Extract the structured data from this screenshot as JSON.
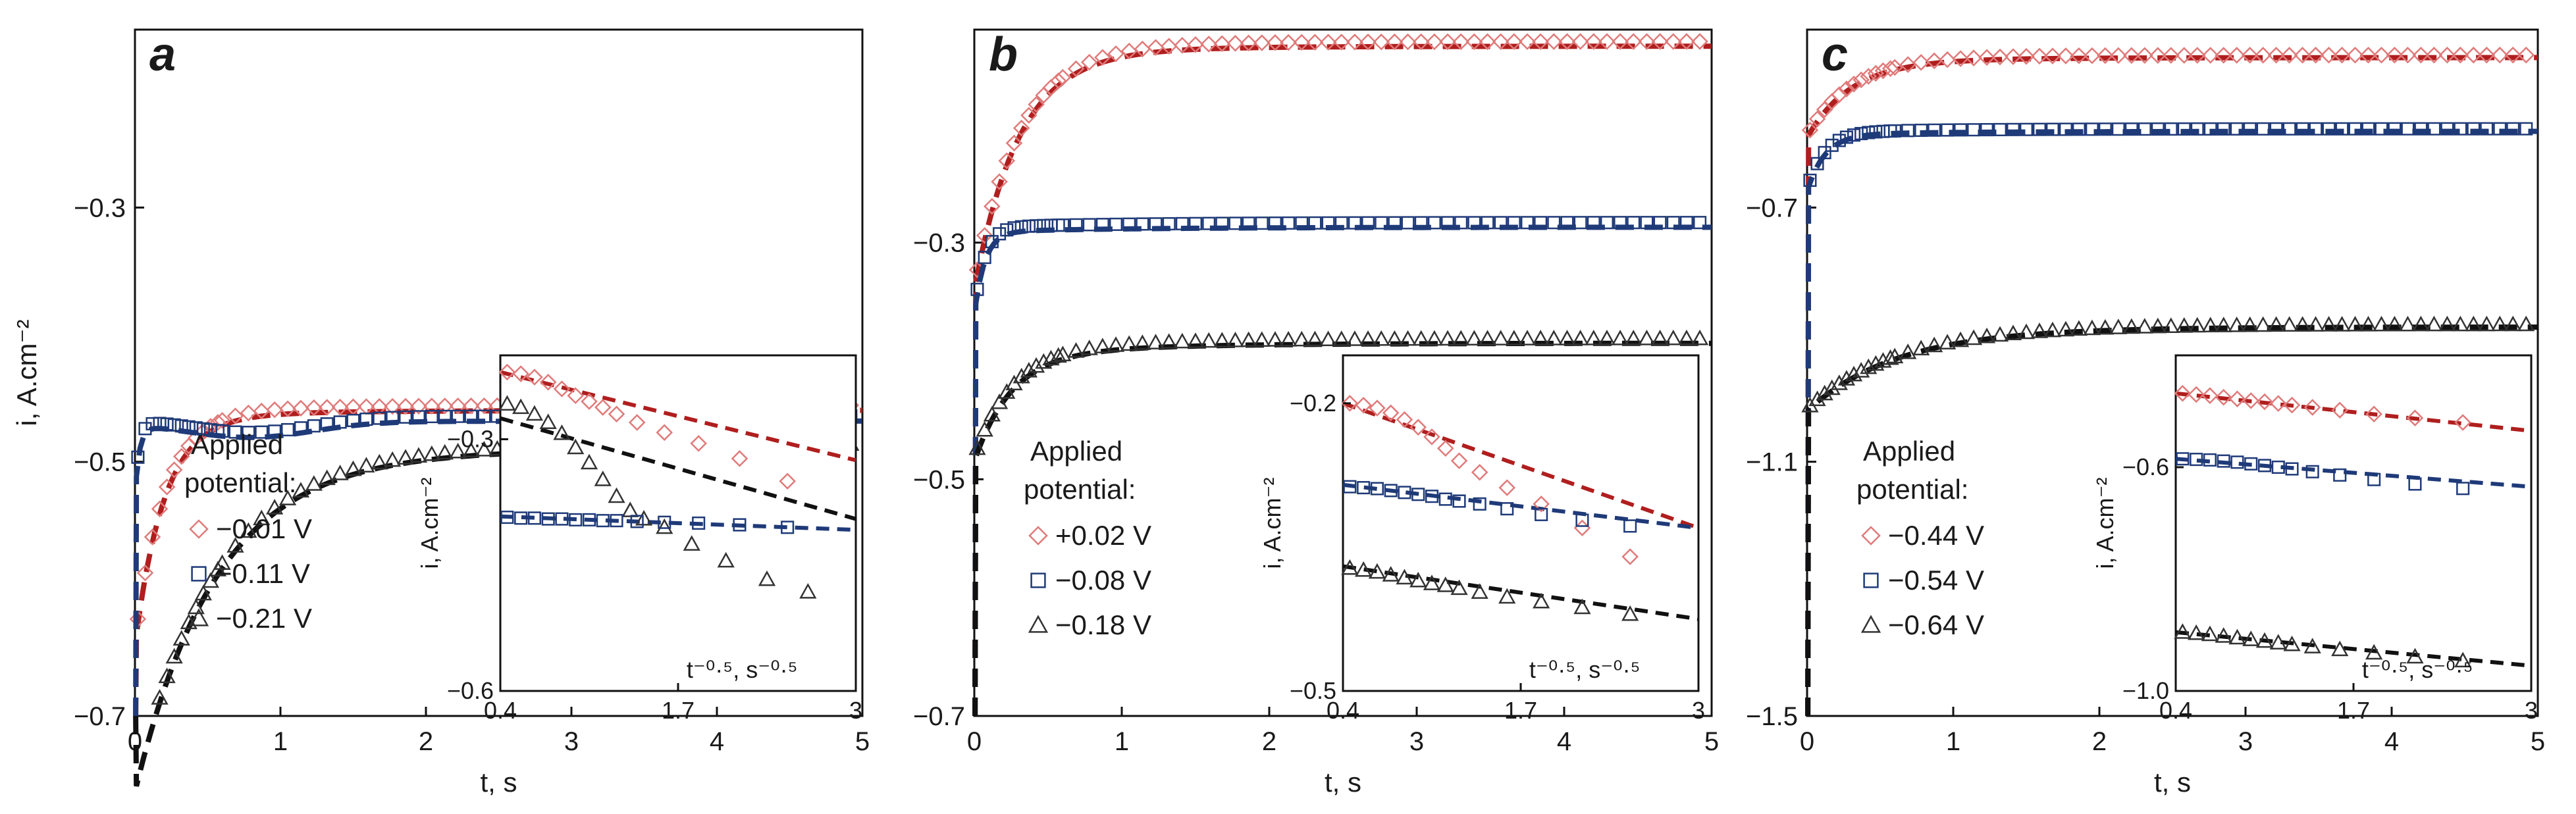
{
  "colors": {
    "red": "#b01e1e",
    "blue": "#1f3a78",
    "black": "#111111",
    "red_marker": "#e07a7a",
    "blue_marker": "#1f3a78",
    "black_marker": "#333333"
  },
  "chart_data": [
    {
      "type": "scatter",
      "panel": "a",
      "xlabel": "t, s",
      "ylabel": "i, A.cm⁻²",
      "xlim": [
        0,
        5
      ],
      "ylim": [
        -0.7,
        -0.16
      ],
      "xticks": [
        0,
        1,
        2,
        3,
        4,
        5
      ],
      "xtick_labels": [
        "0",
        "1",
        "2",
        "3",
        "4",
        "5"
      ],
      "yticks": [
        -0.7,
        -0.5,
        -0.3
      ],
      "ytick_labels": [
        "-0.7",
        "-0.5",
        "-0.3"
      ],
      "legend_title": [
        "Applied",
        "potential:"
      ],
      "series": [
        {
          "name": "-0.01 V",
          "label": "◇ −0.01 V",
          "marker": "diamond",
          "color": "red",
          "model": {
            "base": -0.465,
            "a": -0.18,
            "tau": 0.2,
            "b": 0.0055
          }
        },
        {
          "name": "-0.11 V",
          "label": "□ −0.11 V",
          "marker": "square",
          "color": "blue",
          "model": {
            "base": -0.47,
            "a": -0.055,
            "tau": 0.03,
            "b": 0.002,
            "dip": 0.012
          }
        },
        {
          "name": "-0.21 V",
          "label": "△ −0.21 V",
          "marker": "triangle",
          "color": "black",
          "model": {
            "base": -0.505,
            "a": -0.255,
            "tau": 0.55,
            "b": 0.015
          }
        }
      ],
      "inset": {
        "xlabel": "t⁻⁰·⁵, s⁻⁰·⁵",
        "ylabel": "i, A.cm⁻²",
        "xlim": [
          0.4,
          3
        ],
        "ylim": [
          -0.6,
          -0.2
        ],
        "xticks": [
          0.4,
          1.7,
          3
        ],
        "xtick_labels": [
          "0.4",
          "1.7",
          "3"
        ],
        "yticks": [
          -0.6,
          -0.3
        ],
        "ytick_labels": [
          "-0.6",
          "-0.3"
        ],
        "lines": [
          {
            "color": "red",
            "x": [
              0.4,
              3
            ],
            "y": [
              -0.22,
              -0.325
            ]
          },
          {
            "color": "black",
            "x": [
              0.4,
              3
            ],
            "y": [
              -0.275,
              -0.395
            ]
          },
          {
            "color": "blue",
            "x": [
              0.4,
              3
            ],
            "y": [
              -0.392,
              -0.408
            ]
          }
        ],
        "points": [
          {
            "color": "red",
            "marker": "diamond",
            "x": [
              0.45,
              0.55,
              0.65,
              0.75,
              0.85,
              0.95,
              1.05,
              1.15,
              1.25,
              1.4,
              1.6,
              1.85,
              2.15,
              2.5
            ],
            "y": [
              -0.22,
              -0.222,
              -0.226,
              -0.232,
              -0.24,
              -0.248,
              -0.255,
              -0.262,
              -0.27,
              -0.28,
              -0.292,
              -0.305,
              -0.323,
              -0.35
            ]
          },
          {
            "color": "black",
            "marker": "triangle",
            "x": [
              0.45,
              0.55,
              0.65,
              0.75,
              0.85,
              0.95,
              1.05,
              1.15,
              1.25,
              1.35,
              1.45,
              1.6,
              1.8,
              2.05,
              2.35,
              2.65
            ],
            "y": [
              -0.258,
              -0.262,
              -0.27,
              -0.28,
              -0.293,
              -0.31,
              -0.328,
              -0.348,
              -0.368,
              -0.385,
              -0.395,
              -0.405,
              -0.425,
              -0.445,
              -0.467,
              -0.482
            ]
          },
          {
            "color": "blue",
            "marker": "square",
            "x": [
              0.45,
              0.55,
              0.65,
              0.75,
              0.85,
              0.95,
              1.05,
              1.15,
              1.25,
              1.4,
              1.6,
              1.85,
              2.15,
              2.5
            ],
            "y": [
              -0.393,
              -0.394,
              -0.394,
              -0.395,
              -0.395,
              -0.396,
              -0.396,
              -0.397,
              -0.397,
              -0.398,
              -0.399,
              -0.4,
              -0.402,
              -0.405
            ]
          }
        ]
      }
    },
    {
      "type": "scatter",
      "panel": "b",
      "xlabel": "t, s",
      "ylabel": "",
      "xlim": [
        0,
        5
      ],
      "ylim": [
        -0.7,
        -0.12
      ],
      "xticks": [
        0,
        1,
        2,
        3,
        4,
        5
      ],
      "xtick_labels": [
        "0",
        "1",
        "2",
        "3",
        "4",
        "5"
      ],
      "yticks": [
        -0.7,
        -0.5,
        -0.3
      ],
      "ytick_labels": [
        "-0.7",
        "-0.5",
        "-0.3"
      ],
      "legend_title": [
        "Applied",
        "potential:"
      ],
      "series": [
        {
          "name": "+0.02 V",
          "label": "◇ +0.02 V",
          "marker": "diamond",
          "color": "red",
          "model": {
            "base": -0.14,
            "a": -0.2,
            "tau": 0.3,
            "b": 0.006
          }
        },
        {
          "name": "-0.08 V",
          "label": "□ −0.08 V",
          "marker": "square",
          "color": "blue",
          "model": {
            "base": -0.291,
            "a": -0.07,
            "tau": 0.07,
            "b": 0.004
          }
        },
        {
          "name": "-0.18 V",
          "label": "△ −0.18 V",
          "marker": "triangle",
          "color": "black",
          "model": {
            "base": -0.395,
            "a": -0.09,
            "tau": 0.25,
            "b": 0.01
          }
        }
      ],
      "inset": {
        "xlabel": "t⁻⁰·⁵, s⁻⁰·⁵",
        "ylabel": "i, A.cm⁻²",
        "xlim": [
          0.4,
          3
        ],
        "ylim": [
          -0.5,
          -0.15
        ],
        "xticks": [
          0.4,
          1.7,
          3
        ],
        "xtick_labels": [
          "0.4",
          "1.7",
          "3"
        ],
        "yticks": [
          -0.5,
          -0.2
        ],
        "ytick_labels": [
          "-0.5",
          "-0.2"
        ],
        "lines": [
          {
            "color": "red",
            "x": [
              0.4,
              3
            ],
            "y": [
              -0.2,
              -0.33
            ]
          },
          {
            "color": "blue",
            "x": [
              0.4,
              3
            ],
            "y": [
              -0.285,
              -0.33
            ]
          },
          {
            "color": "black",
            "x": [
              0.4,
              3
            ],
            "y": [
              -0.37,
              -0.425
            ]
          }
        ],
        "points": [
          {
            "color": "red",
            "marker": "diamond",
            "x": [
              0.45,
              0.55,
              0.65,
              0.75,
              0.85,
              0.95,
              1.05,
              1.15,
              1.25,
              1.4,
              1.6,
              1.85,
              2.15,
              2.5
            ],
            "y": [
              -0.2,
              -0.202,
              -0.205,
              -0.21,
              -0.217,
              -0.225,
              -0.235,
              -0.247,
              -0.26,
              -0.272,
              -0.288,
              -0.305,
              -0.33,
              -0.36
            ]
          },
          {
            "color": "blue",
            "marker": "square",
            "x": [
              0.45,
              0.55,
              0.65,
              0.75,
              0.85,
              0.95,
              1.05,
              1.15,
              1.25,
              1.4,
              1.6,
              1.85,
              2.15,
              2.5
            ],
            "y": [
              -0.287,
              -0.288,
              -0.289,
              -0.291,
              -0.293,
              -0.295,
              -0.297,
              -0.3,
              -0.302,
              -0.305,
              -0.31,
              -0.316,
              -0.322,
              -0.328
            ]
          },
          {
            "color": "black",
            "marker": "triangle",
            "x": [
              0.45,
              0.55,
              0.65,
              0.75,
              0.85,
              0.95,
              1.05,
              1.15,
              1.25,
              1.4,
              1.6,
              1.85,
              2.15,
              2.5
            ],
            "y": [
              -0.372,
              -0.374,
              -0.376,
              -0.379,
              -0.382,
              -0.385,
              -0.388,
              -0.39,
              -0.393,
              -0.397,
              -0.402,
              -0.407,
              -0.413,
              -0.42
            ]
          }
        ]
      }
    },
    {
      "type": "scatter",
      "panel": "c",
      "xlabel": "t, s",
      "ylabel": "",
      "xlim": [
        0,
        5
      ],
      "ylim": [
        -1.5,
        -0.42
      ],
      "xticks": [
        0,
        1,
        2,
        3,
        4,
        5
      ],
      "xtick_labels": [
        "0",
        "1",
        "2",
        "3",
        "4",
        "5"
      ],
      "yticks": [
        -1.5,
        -1.1,
        -0.7
      ],
      "ytick_labels": [
        "-1.5",
        "-1.1",
        "-0.7"
      ],
      "legend_title": [
        "Applied",
        "potential:"
      ],
      "series": [
        {
          "name": "-0.44 V",
          "label": "◇ −0.44 V",
          "marker": "diamond",
          "color": "red",
          "model": {
            "base": -0.47,
            "a": -0.12,
            "tau": 0.3,
            "b": 0.006
          }
        },
        {
          "name": "-0.54 V",
          "label": "□ −0.54 V",
          "marker": "square",
          "color": "blue",
          "model": {
            "base": -0.585,
            "a": -0.09,
            "tau": 0.12,
            "b": 0.005
          }
        },
        {
          "name": "-0.64 V",
          "label": "△ −0.64 V",
          "marker": "triangle",
          "color": "black",
          "model": {
            "base": -0.9,
            "a": -0.12,
            "tau": 0.6,
            "b": 0.012
          }
        }
      ],
      "inset": {
        "xlabel": "t⁻⁰·⁵, s⁻⁰·⁵",
        "ylabel": "i, A.cm⁻²",
        "xlim": [
          0.4,
          3
        ],
        "ylim": [
          -1.0,
          -0.4
        ],
        "xticks": [
          0.4,
          1.7,
          3
        ],
        "xtick_labels": [
          "0.4",
          "1.7",
          "3"
        ],
        "yticks": [
          -1.0,
          -0.6
        ],
        "ytick_labels": [
          "-1.0",
          "-0.6"
        ],
        "lines": [
          {
            "color": "red",
            "x": [
              0.4,
              3
            ],
            "y": [
              -0.468,
              -0.535
            ]
          },
          {
            "color": "blue",
            "x": [
              0.4,
              3
            ],
            "y": [
              -0.585,
              -0.635
            ]
          },
          {
            "color": "black",
            "x": [
              0.4,
              3
            ],
            "y": [
              -0.895,
              -0.955
            ]
          }
        ],
        "points": [
          {
            "color": "red",
            "marker": "diamond",
            "x": [
              0.45,
              0.55,
              0.65,
              0.75,
              0.85,
              0.95,
              1.05,
              1.15,
              1.25,
              1.4,
              1.6,
              1.85,
              2.15,
              2.5
            ],
            "y": [
              -0.468,
              -0.47,
              -0.472,
              -0.475,
              -0.478,
              -0.481,
              -0.483,
              -0.486,
              -0.489,
              -0.493,
              -0.498,
              -0.505,
              -0.512,
              -0.52
            ]
          },
          {
            "color": "blue",
            "marker": "square",
            "x": [
              0.45,
              0.55,
              0.65,
              0.75,
              0.85,
              0.95,
              1.05,
              1.15,
              1.25,
              1.4,
              1.6,
              1.85,
              2.15,
              2.5
            ],
            "y": [
              -0.585,
              -0.586,
              -0.587,
              -0.589,
              -0.591,
              -0.594,
              -0.597,
              -0.6,
              -0.603,
              -0.608,
              -0.614,
              -0.622,
              -0.63,
              -0.638
            ]
          },
          {
            "color": "black",
            "marker": "triangle",
            "x": [
              0.45,
              0.55,
              0.65,
              0.75,
              0.85,
              0.95,
              1.05,
              1.15,
              1.25,
              1.4,
              1.6,
              1.85,
              2.15,
              2.5
            ],
            "y": [
              -0.895,
              -0.897,
              -0.899,
              -0.902,
              -0.905,
              -0.908,
              -0.911,
              -0.914,
              -0.917,
              -0.921,
              -0.926,
              -0.932,
              -0.939,
              -0.946
            ]
          }
        ]
      }
    }
  ]
}
